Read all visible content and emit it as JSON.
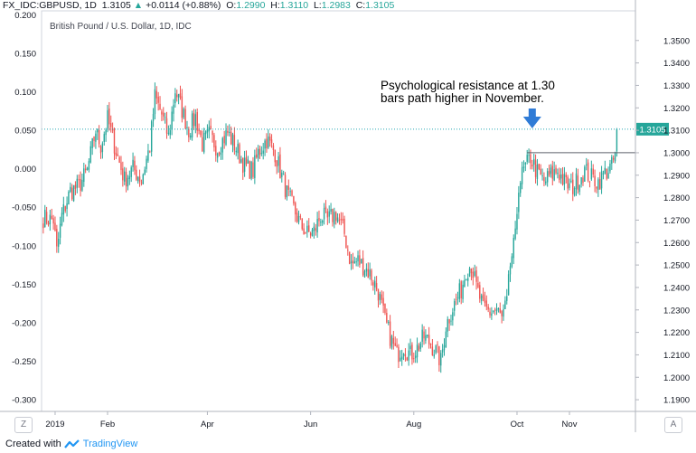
{
  "header": {
    "symbol": "FX_IDC:GBPUSD, 1D",
    "last": "1.3105",
    "change": "+0.0114 (+0.88%)",
    "o_label": "O:",
    "o_value": "1.2990",
    "h_label": "H:",
    "h_value": "1.3110",
    "l_label": "L:",
    "l_value": "1.2983",
    "c_label": "C:",
    "c_value": "1.3105"
  },
  "footer": {
    "created_with": "Created with",
    "brand": "TradingView"
  },
  "buttons": {
    "left": "Z",
    "right": "A"
  },
  "colors": {
    "up": "#26a69a",
    "down": "#ef5350",
    "hline": "#26a6b4",
    "arrow": "#2f7bd6",
    "grid": "#e0e3eb"
  },
  "chart_data": {
    "type": "candlestick",
    "title": "British Pound / U.S. Dollar, 1D, IDC",
    "annotation": "Psychological resistance at 1.30\nbars path higher in November.",
    "annotation_line1": "Psychological resistance at 1.30",
    "annotation_line2": "bars path higher in November.",
    "last_price_label": "1.3105",
    "resistance_level": 1.3,
    "dotted_level": 1.3105,
    "left_axis": {
      "ylim": [
        -0.315,
        0.205
      ],
      "ticks": [
        "0.200",
        "0.150",
        "0.100",
        "0.050",
        "0.000",
        "-0.050",
        "-0.100",
        "-0.150",
        "-0.200",
        "-0.250",
        "-0.300"
      ]
    },
    "right_axis": {
      "ylim": [
        1.1848,
        1.3632
      ],
      "ticks": [
        "1.3500",
        "1.3400",
        "1.3300",
        "1.3200",
        "1.3100",
        "1.3000",
        "1.2900",
        "1.2800",
        "1.2700",
        "1.2600",
        "1.2500",
        "1.2400",
        "1.2300",
        "1.2200",
        "1.2100",
        "1.2000",
        "1.1900"
      ]
    },
    "x_labels": [
      "2019",
      "Feb",
      "Apr",
      "Jun",
      "Aug",
      "Oct",
      "Nov"
    ],
    "x_label_days": [
      1,
      32,
      91,
      152,
      213,
      274,
      305
    ],
    "x_range_days": [
      -7,
      344
    ],
    "anchors": [
      {
        "day": -6,
        "price": 1.271
      },
      {
        "day": 0,
        "price": 1.27
      },
      {
        "day": 2,
        "price": 1.256
      },
      {
        "day": 5,
        "price": 1.272
      },
      {
        "day": 10,
        "price": 1.283
      },
      {
        "day": 15,
        "price": 1.285
      },
      {
        "day": 20,
        "price": 1.292
      },
      {
        "day": 25,
        "price": 1.31
      },
      {
        "day": 28,
        "price": 1.303
      },
      {
        "day": 32,
        "price": 1.315
      },
      {
        "day": 38,
        "price": 1.298
      },
      {
        "day": 42,
        "price": 1.288
      },
      {
        "day": 47,
        "price": 1.293
      },
      {
        "day": 52,
        "price": 1.288
      },
      {
        "day": 57,
        "price": 1.303
      },
      {
        "day": 60,
        "price": 1.325
      },
      {
        "day": 64,
        "price": 1.317
      },
      {
        "day": 68,
        "price": 1.307
      },
      {
        "day": 72,
        "price": 1.328
      },
      {
        "day": 76,
        "price": 1.319
      },
      {
        "day": 80,
        "price": 1.31
      },
      {
        "day": 84,
        "price": 1.316
      },
      {
        "day": 88,
        "price": 1.304
      },
      {
        "day": 92,
        "price": 1.308
      },
      {
        "day": 97,
        "price": 1.302
      },
      {
        "day": 103,
        "price": 1.309
      },
      {
        "day": 108,
        "price": 1.302
      },
      {
        "day": 113,
        "price": 1.294
      },
      {
        "day": 118,
        "price": 1.292
      },
      {
        "day": 121,
        "price": 1.3
      },
      {
        "day": 126,
        "price": 1.306
      },
      {
        "day": 131,
        "price": 1.3
      },
      {
        "day": 134,
        "price": 1.292
      },
      {
        "day": 138,
        "price": 1.282
      },
      {
        "day": 142,
        "price": 1.275
      },
      {
        "day": 146,
        "price": 1.268
      },
      {
        "day": 150,
        "price": 1.264
      },
      {
        "day": 154,
        "price": 1.265
      },
      {
        "day": 158,
        "price": 1.272
      },
      {
        "day": 162,
        "price": 1.27
      },
      {
        "day": 167,
        "price": 1.273
      },
      {
        "day": 172,
        "price": 1.264
      },
      {
        "day": 176,
        "price": 1.25
      },
      {
        "day": 180,
        "price": 1.252
      },
      {
        "day": 184,
        "price": 1.249
      },
      {
        "day": 188,
        "price": 1.245
      },
      {
        "day": 192,
        "price": 1.238
      },
      {
        "day": 196,
        "price": 1.225
      },
      {
        "day": 200,
        "price": 1.216
      },
      {
        "day": 203,
        "price": 1.21
      },
      {
        "day": 207,
        "price": 1.214
      },
      {
        "day": 211,
        "price": 1.21
      },
      {
        "day": 215,
        "price": 1.213
      },
      {
        "day": 219,
        "price": 1.218
      },
      {
        "day": 223,
        "price": 1.215
      },
      {
        "day": 227,
        "price": 1.21
      },
      {
        "day": 229,
        "price": 1.207
      },
      {
        "day": 232,
        "price": 1.223
      },
      {
        "day": 236,
        "price": 1.231
      },
      {
        "day": 241,
        "price": 1.239
      },
      {
        "day": 244,
        "price": 1.248
      },
      {
        "day": 247,
        "price": 1.25
      },
      {
        "day": 250,
        "price": 1.24
      },
      {
        "day": 254,
        "price": 1.231
      },
      {
        "day": 258,
        "price": 1.229
      },
      {
        "day": 262,
        "price": 1.23
      },
      {
        "day": 265,
        "price": 1.226
      },
      {
        "day": 268,
        "price": 1.233
      },
      {
        "day": 270,
        "price": 1.25
      },
      {
        "day": 273,
        "price": 1.262
      },
      {
        "day": 275,
        "price": 1.286
      },
      {
        "day": 278,
        "price": 1.292
      },
      {
        "day": 282,
        "price": 1.298
      },
      {
        "day": 286,
        "price": 1.291
      },
      {
        "day": 290,
        "price": 1.287
      },
      {
        "day": 294,
        "price": 1.29
      },
      {
        "day": 298,
        "price": 1.292
      },
      {
        "day": 302,
        "price": 1.287
      },
      {
        "day": 306,
        "price": 1.284
      },
      {
        "day": 310,
        "price": 1.288
      },
      {
        "day": 314,
        "price": 1.292
      },
      {
        "day": 318,
        "price": 1.289
      },
      {
        "day": 322,
        "price": 1.287
      },
      {
        "day": 326,
        "price": 1.291
      },
      {
        "day": 330,
        "price": 1.294
      },
      {
        "day": 332,
        "price": 1.299
      },
      {
        "day": 333,
        "price": 1.3105
      }
    ]
  }
}
